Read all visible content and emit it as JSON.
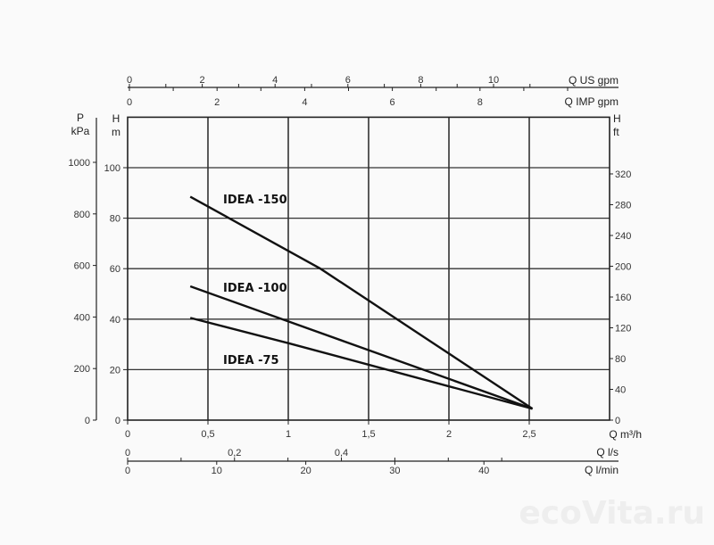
{
  "chart_data": {
    "type": "line",
    "title": "",
    "xlabel": "Q m³/h",
    "ylabel": "H m",
    "xlim": [
      0,
      3
    ],
    "ylim": [
      0,
      120
    ],
    "grid": true,
    "x_ticks": [
      "0",
      "0,5",
      "1",
      "1,5",
      "2",
      "2,5"
    ],
    "x_tick_values": [
      0,
      0.5,
      1,
      1.5,
      2,
      2.5
    ],
    "y_ticks": [
      "0",
      "20",
      "40",
      "60",
      "80",
      "100"
    ],
    "y_tick_values": [
      0,
      20,
      40,
      60,
      80,
      100
    ],
    "series": [
      {
        "name": "IDEA  -150",
        "x": [
          0.39,
          1.2,
          2.52
        ],
        "y": [
          88.5,
          60,
          4.5
        ]
      },
      {
        "name": "IDEA  -100",
        "x": [
          0.39,
          2.52
        ],
        "y": [
          53,
          4.5
        ]
      },
      {
        "name": "IDEA  -75",
        "x": [
          0.39,
          1.0,
          2.52
        ],
        "y": [
          40.5,
          30.5,
          4.5
        ]
      }
    ],
    "secondary_axes": {
      "top_us_gpm": {
        "label": "Q US gpm",
        "ticks": [
          "0",
          "2",
          "4",
          "6",
          "8",
          "10"
        ],
        "values": [
          0,
          2,
          4,
          6,
          8,
          10
        ],
        "minor_step": 1
      },
      "top_imp_gpm": {
        "label": "Q IMP gpm",
        "ticks": [
          "0",
          "2",
          "4",
          "6",
          "8"
        ],
        "values": [
          0,
          2,
          4,
          6,
          8
        ],
        "minor_step": 1
      },
      "left_pressure": {
        "label_line1": "P",
        "label_line2": "kPa",
        "ticks": [
          "0",
          "200",
          "400",
          "600",
          "800",
          "1000"
        ],
        "values": [
          0,
          200,
          400,
          600,
          800,
          1000
        ]
      },
      "left_head_m": {
        "label_line1": "H",
        "label_line2": "m"
      },
      "right_head_ft": {
        "label_line1": "H",
        "label_line2": "ft",
        "ticks": [
          "0",
          "40",
          "80",
          "120",
          "160",
          "200",
          "240",
          "280",
          "320"
        ],
        "values": [
          0,
          40,
          80,
          120,
          160,
          200,
          240,
          280,
          320
        ]
      },
      "bottom_ls": {
        "label": "Q l/s",
        "ticks": [
          "0",
          "0,2",
          "0,4"
        ],
        "values": [
          0,
          0.2,
          0.4
        ],
        "minor_step": 0.1
      },
      "bottom_lmin": {
        "label": "Q l/min",
        "ticks": [
          "0",
          "10",
          "20",
          "30",
          "40"
        ],
        "values": [
          0,
          10,
          20,
          30,
          40
        ]
      }
    }
  },
  "watermark": "ecoVita.ru"
}
